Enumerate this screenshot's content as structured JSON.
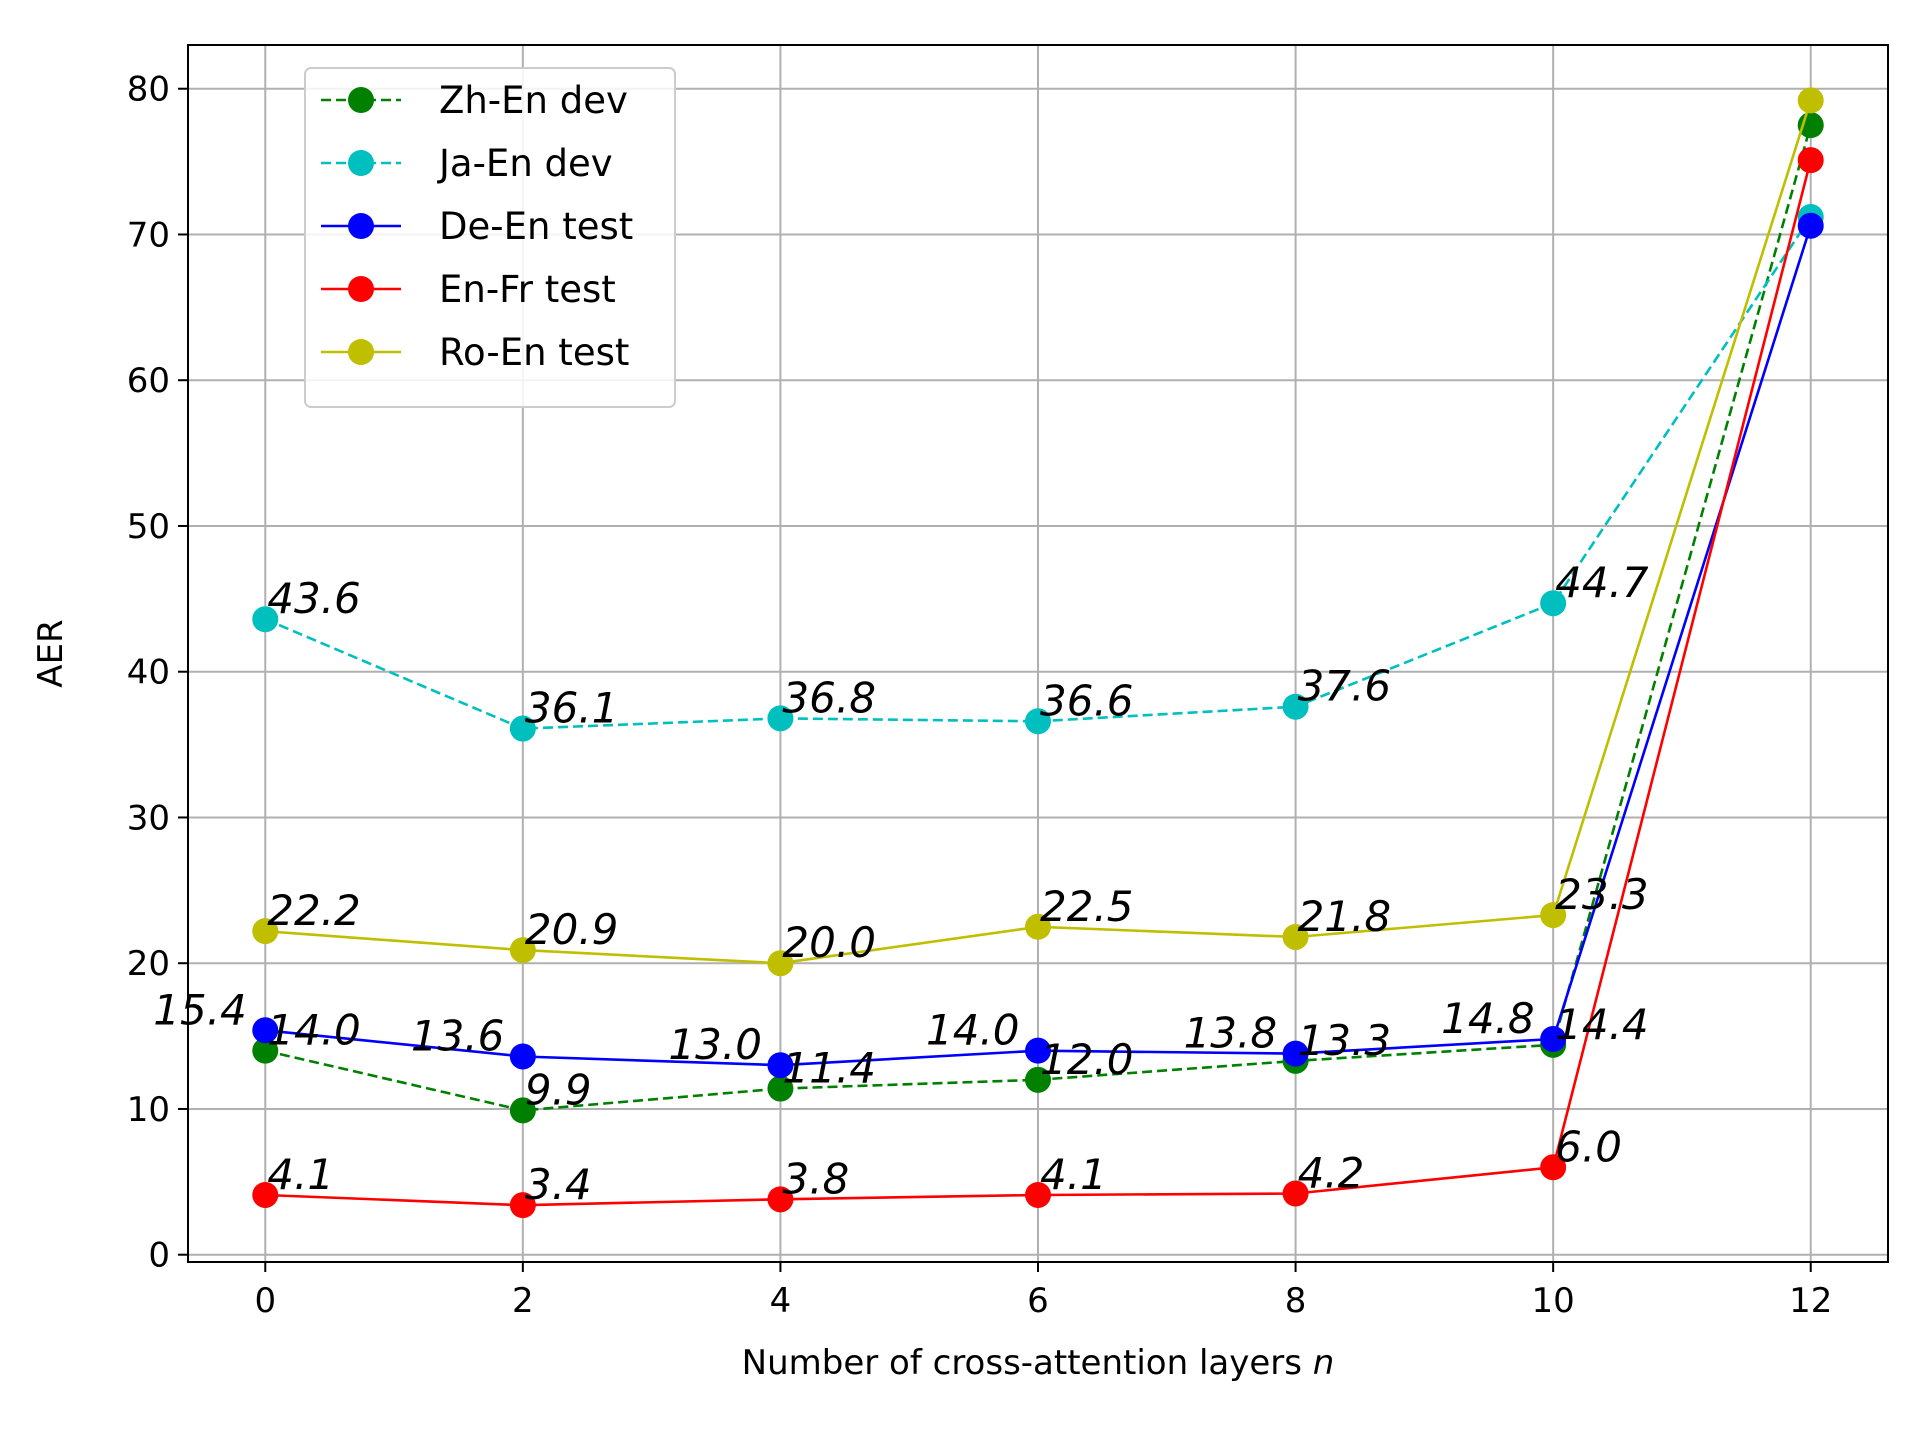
{
  "chart_data": {
    "type": "line",
    "title": "",
    "xlabel": "Number of cross-attention layers",
    "xlabel_var": "n",
    "ylabel": "AER",
    "xlim": [
      -0.6,
      12.6
    ],
    "ylim": [
      -0.5,
      83
    ],
    "xticks": [
      0,
      2,
      4,
      6,
      8,
      10,
      12
    ],
    "yticks": [
      0,
      10,
      20,
      30,
      40,
      50,
      60,
      70,
      80
    ],
    "grid": true,
    "legend_position": "top-left",
    "x": [
      0,
      2,
      4,
      6,
      8,
      10,
      12
    ],
    "series": [
      {
        "name": "Zh-En dev",
        "color": "#008000",
        "dashed": true,
        "values": [
          14.0,
          9.9,
          11.4,
          12.0,
          13.3,
          14.4,
          77.5
        ],
        "labels": [
          "14.0",
          "9.9",
          "11.4",
          "12.0",
          "13.3",
          "14.4",
          null
        ]
      },
      {
        "name": "Ja-En dev",
        "color": "#00BFBF",
        "dashed": true,
        "values": [
          43.6,
          36.1,
          36.8,
          36.6,
          37.6,
          44.7,
          71.2
        ],
        "labels": [
          "43.6",
          "36.1",
          "36.8",
          "36.6",
          "37.6",
          "44.7",
          null
        ]
      },
      {
        "name": "De-En test",
        "color": "#0000FF",
        "dashed": false,
        "values": [
          15.4,
          13.6,
          13.0,
          14.0,
          13.8,
          14.8,
          70.6
        ],
        "labels": [
          "15.4",
          "13.6",
          "13.0",
          "14.0",
          "13.8",
          "14.8",
          null
        ]
      },
      {
        "name": "En-Fr test",
        "color": "#FF0000",
        "dashed": false,
        "values": [
          4.1,
          3.4,
          3.8,
          4.1,
          4.2,
          6.0,
          75.1
        ],
        "labels": [
          "4.1",
          "3.4",
          "3.8",
          "4.1",
          "4.2",
          "6.0",
          null
        ]
      },
      {
        "name": "Ro-En test",
        "color": "#BFBF00",
        "dashed": false,
        "values": [
          22.2,
          20.9,
          20.0,
          22.5,
          21.8,
          23.3,
          79.2
        ],
        "labels": [
          "22.2",
          "20.9",
          "20.0",
          "22.5",
          "21.8",
          "23.3",
          null
        ]
      }
    ]
  }
}
